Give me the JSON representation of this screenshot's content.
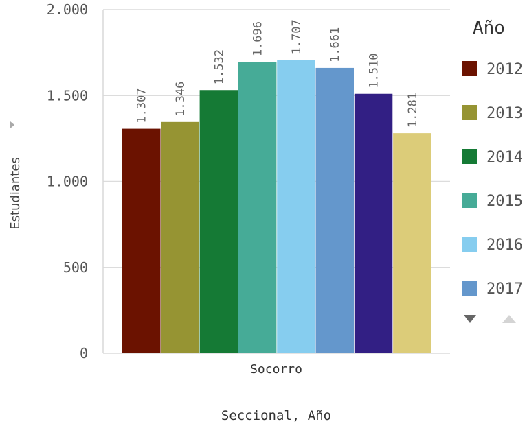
{
  "chart_data": {
    "type": "bar",
    "categories": [
      "Socorro"
    ],
    "series": [
      {
        "name": "2012",
        "values": [
          1307
        ],
        "label": "1.307",
        "color": "#6b1200"
      },
      {
        "name": "2013",
        "values": [
          1346
        ],
        "label": "1.346",
        "color": "#969433"
      },
      {
        "name": "2014",
        "values": [
          1532
        ],
        "label": "1.532",
        "color": "#157a35"
      },
      {
        "name": "2015",
        "values": [
          1696
        ],
        "label": "1.696",
        "color": "#46ab97"
      },
      {
        "name": "2016",
        "values": [
          1707
        ],
        "label": "1.707",
        "color": "#86cdef"
      },
      {
        "name": "2017",
        "values": [
          1661
        ],
        "label": "1.661",
        "color": "#6497cc"
      },
      {
        "name": "",
        "values": [
          1510
        ],
        "label": "1.510",
        "color": "#321f84"
      },
      {
        "name": "",
        "values": [
          1281
        ],
        "label": "1.281",
        "color": "#dccc79"
      }
    ],
    "title": "",
    "xlabel": "Seccional, Año",
    "ylabel": "Estudiantes",
    "ylim": [
      0,
      2000
    ],
    "yticks": [
      0,
      500,
      1000,
      1500,
      2000
    ],
    "ytick_labels": [
      "0",
      "500",
      "1.000",
      "1.500",
      "2.000"
    ],
    "grid": true,
    "legend": {
      "title": "Año",
      "placement": "right",
      "visible_entries": [
        "2012",
        "2013",
        "2014",
        "2015",
        "2016",
        "2017"
      ]
    },
    "nav_icons": [
      "triangle-down-icon",
      "triangle-up-icon"
    ]
  }
}
